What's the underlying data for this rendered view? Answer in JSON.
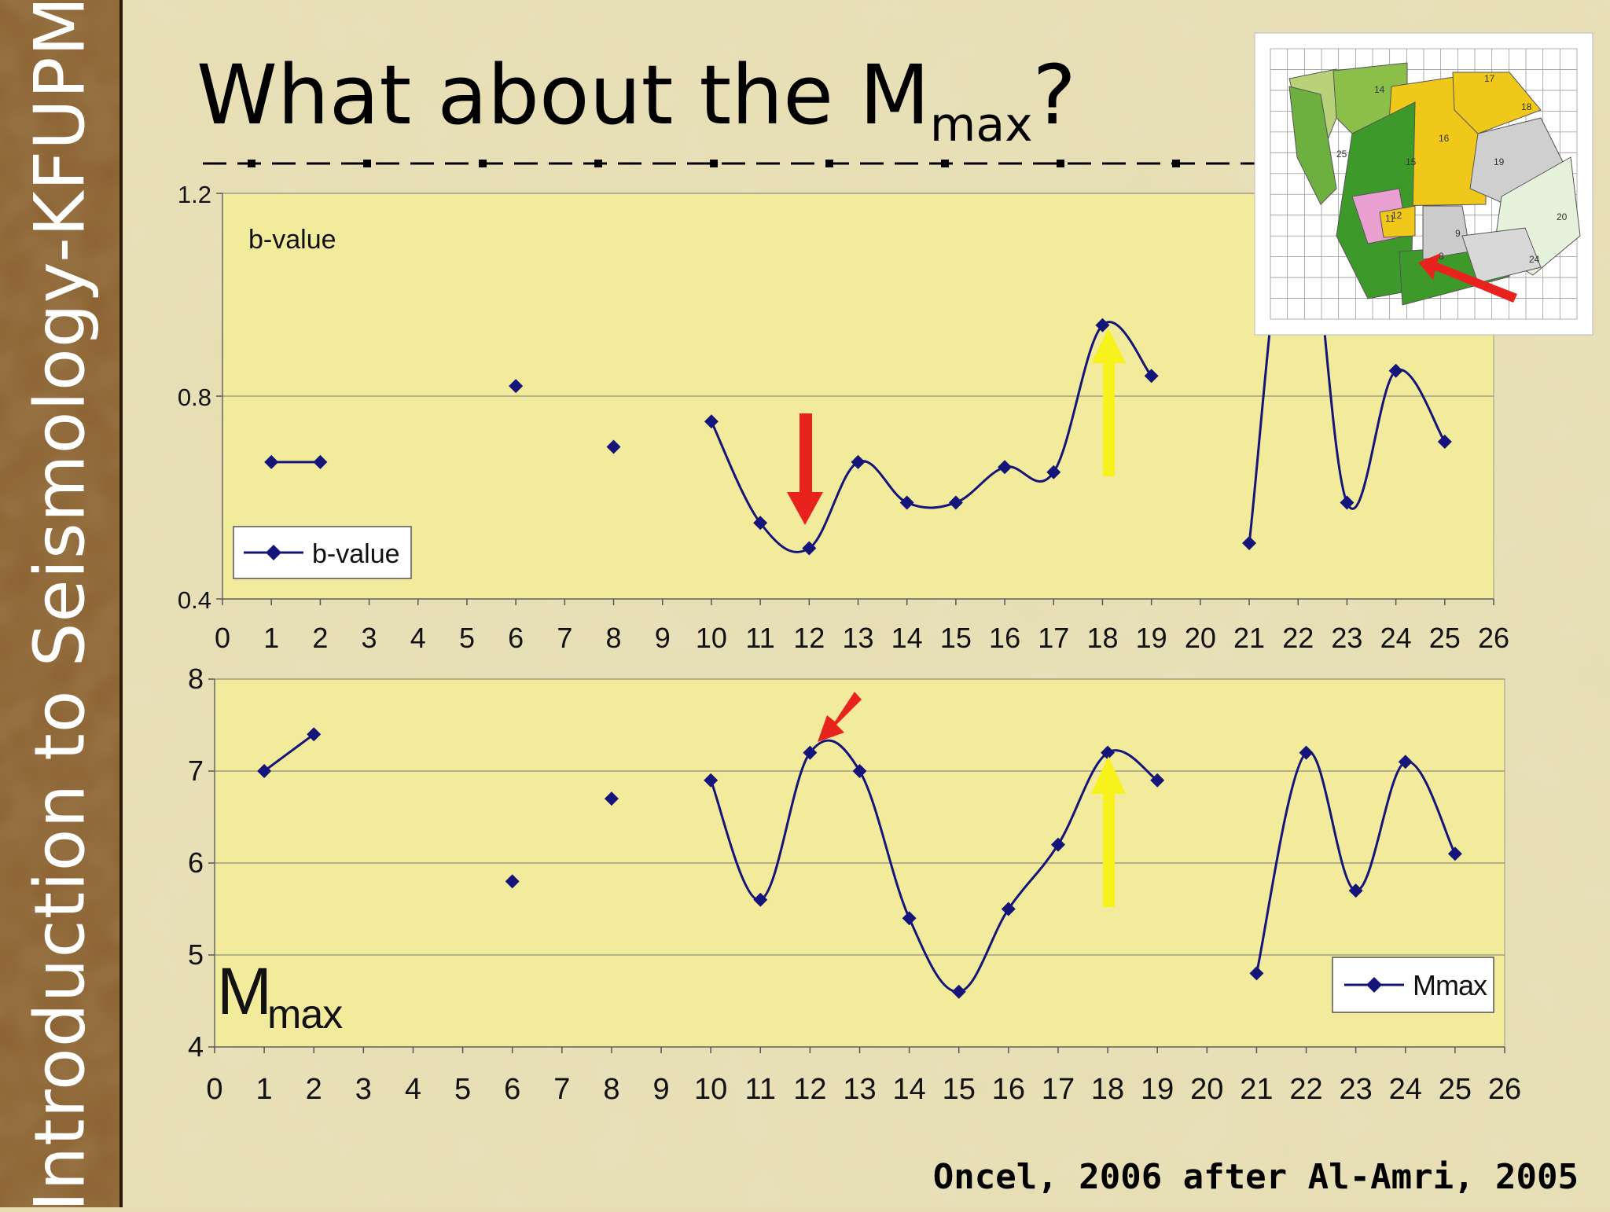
{
  "slide": {
    "sidebar_text": "Introduction to Seismology-KFUPM",
    "title_prefix": "What about the M",
    "title_sub": "max",
    "title_suffix": "?",
    "citation": "Oncel, 2006 after Al-Amri, 2005"
  },
  "colors": {
    "plot_bg": "#f2eb9c",
    "series": "#14147a",
    "red_arrow": "#e8231e",
    "yellow_arrow": "#f8f21c",
    "sidebar": "#8a5f30"
  },
  "map_inset": {
    "zone_labels": [
      "14",
      "15",
      "16",
      "17",
      "18",
      "19",
      "20",
      "11",
      "12",
      "9",
      "24",
      "25",
      "8"
    ]
  },
  "chart_data": [
    {
      "type": "line",
      "title": "",
      "inner_label": "b-value",
      "legend": "b-value",
      "legend_position": "bottom-left",
      "xlim": [
        0,
        26
      ],
      "ylim": [
        0.4,
        1.2
      ],
      "y_ticks": [
        "0.4",
        "0.8",
        "1.2"
      ],
      "x_ticks": [
        "0",
        "1",
        "2",
        "3",
        "4",
        "5",
        "6",
        "7",
        "8",
        "9",
        "10",
        "11",
        "12",
        "13",
        "14",
        "15",
        "16",
        "17",
        "18",
        "19",
        "20",
        "21",
        "22",
        "23",
        "24",
        "25",
        "26"
      ],
      "grid": "horizontal",
      "segments": [
        [
          [
            1,
            0.67
          ],
          [
            2,
            0.67
          ]
        ],
        [
          [
            6,
            0.82
          ]
        ],
        [
          [
            8,
            0.7
          ]
        ],
        [
          [
            10,
            0.75
          ],
          [
            11,
            0.55
          ],
          [
            12,
            0.5
          ],
          [
            13,
            0.67
          ],
          [
            14,
            0.59
          ],
          [
            15,
            0.59
          ],
          [
            16,
            0.66
          ],
          [
            17,
            0.65
          ],
          [
            18,
            0.94
          ],
          [
            19,
            0.84
          ]
        ],
        [
          [
            21,
            0.51
          ],
          [
            22,
            1.28
          ],
          [
            23,
            0.59
          ],
          [
            24,
            0.85
          ],
          [
            25,
            0.71
          ]
        ]
      ],
      "annotations": [
        {
          "type": "arrow",
          "color": "red",
          "direction": "down",
          "x": 12
        },
        {
          "type": "arrow",
          "color": "yellow",
          "direction": "up",
          "x": 18
        }
      ]
    },
    {
      "type": "line",
      "title": "",
      "inner_label_main": "M",
      "inner_label_sub": "max",
      "legend": "Mmax",
      "legend_position": "bottom-right",
      "xlim": [
        0,
        26
      ],
      "ylim": [
        4,
        8
      ],
      "y_ticks": [
        "4",
        "5",
        "6",
        "7",
        "8"
      ],
      "x_ticks": [
        "0",
        "1",
        "2",
        "3",
        "4",
        "5",
        "6",
        "7",
        "8",
        "9",
        "10",
        "11",
        "12",
        "13",
        "14",
        "15",
        "16",
        "17",
        "18",
        "19",
        "20",
        "21",
        "22",
        "23",
        "24",
        "25",
        "26"
      ],
      "grid": "horizontal",
      "segments": [
        [
          [
            1,
            7.0
          ],
          [
            2,
            7.4
          ]
        ],
        [
          [
            6,
            5.8
          ]
        ],
        [
          [
            8,
            6.7
          ]
        ],
        [
          [
            10,
            6.9
          ],
          [
            11,
            5.6
          ],
          [
            12,
            7.2
          ],
          [
            13,
            7.0
          ],
          [
            14,
            5.4
          ],
          [
            15,
            4.6
          ],
          [
            16,
            5.5
          ],
          [
            17,
            6.2
          ],
          [
            18,
            7.2
          ],
          [
            19,
            6.9
          ]
        ],
        [
          [
            21,
            4.8
          ],
          [
            22,
            7.2
          ],
          [
            23,
            5.7
          ],
          [
            24,
            7.1
          ],
          [
            25,
            6.1
          ]
        ]
      ],
      "annotations": [
        {
          "type": "arrow",
          "color": "red",
          "direction": "down-left",
          "x": 12
        },
        {
          "type": "arrow",
          "color": "yellow",
          "direction": "up",
          "x": 18
        }
      ]
    }
  ]
}
